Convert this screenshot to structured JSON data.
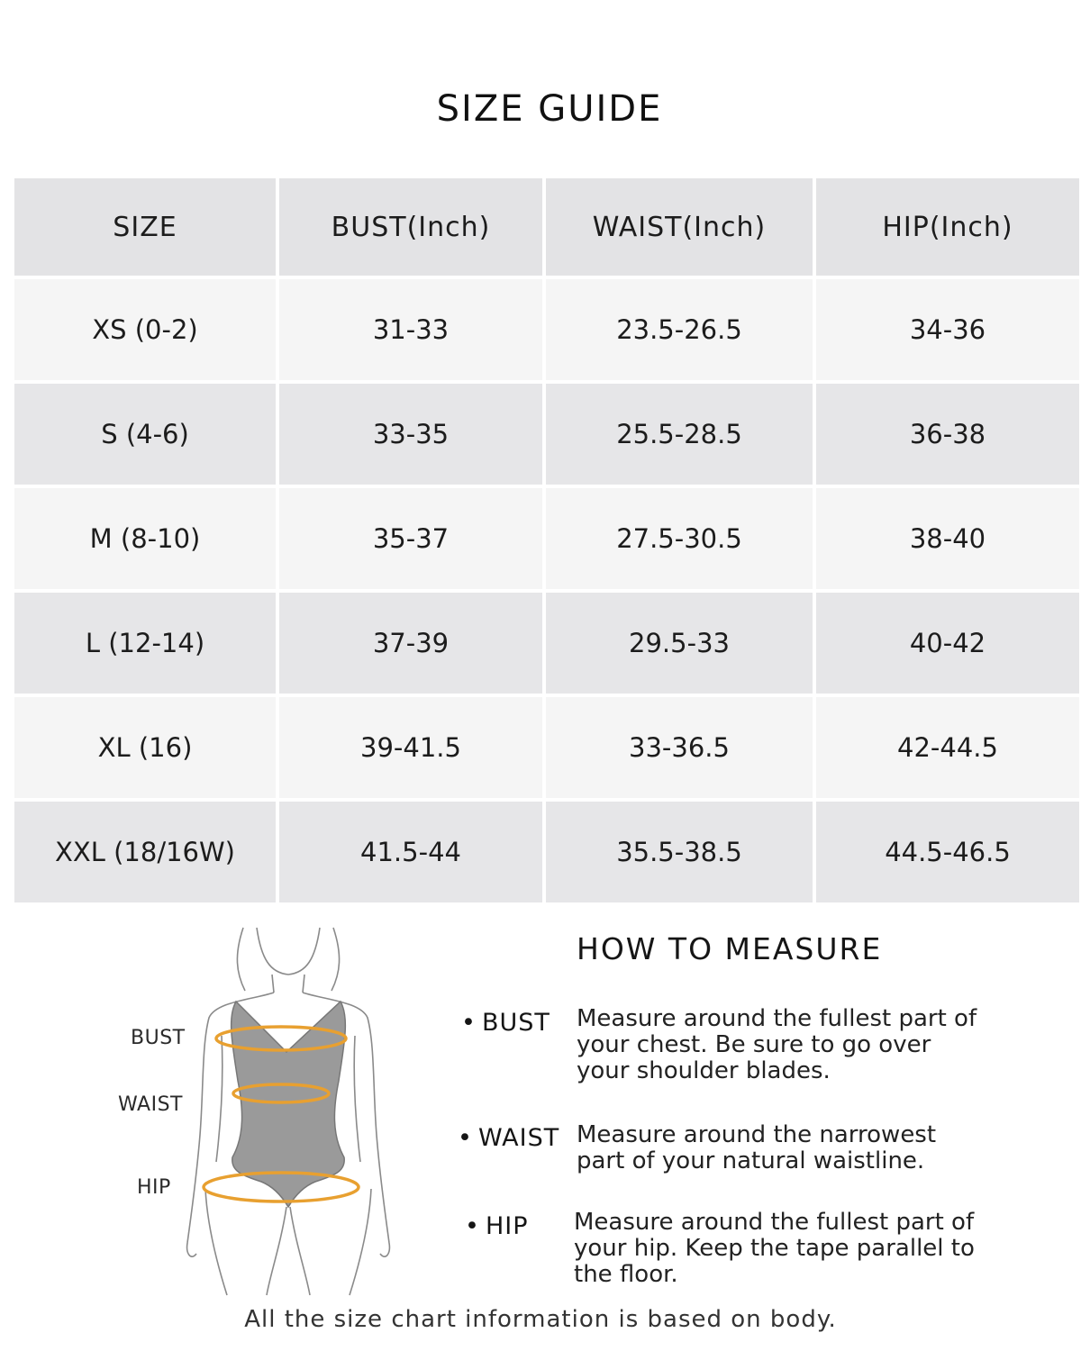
{
  "title": "SIZE GUIDE",
  "table": {
    "headers": [
      "SIZE",
      "BUST(Inch)",
      "WAIST(Inch)",
      "HIP(Inch)"
    ],
    "rows": [
      [
        "XS (0-2)",
        "31-33",
        "23.5-26.5",
        "34-36"
      ],
      [
        "S (4-6)",
        "33-35",
        "25.5-28.5",
        "36-38"
      ],
      [
        "M (8-10)",
        "35-37",
        "27.5-30.5",
        "38-40"
      ],
      [
        "L (12-14)",
        "37-39",
        "29.5-33",
        "40-42"
      ],
      [
        "XL (16)",
        "39-41.5",
        "33-36.5",
        "42-44.5"
      ],
      [
        "XXL (18/16W)",
        "41.5-44",
        "35.5-38.5",
        "44.5-46.5"
      ]
    ]
  },
  "figure": {
    "labels": {
      "bust": "BUST",
      "waist": "WAIST",
      "hip": "HIP"
    },
    "icon": "body-measurement-illustration",
    "tape_color": "#e8a030"
  },
  "how_to_measure": {
    "title": "HOW TO MEASURE",
    "items": [
      {
        "label": "BUST",
        "text": "Measure around the fullest part of your chest. Be sure to go over your shoulder blades."
      },
      {
        "label": "WAIST",
        "text": "Measure around the narrowest part of your natural waistline."
      },
      {
        "label": "HIP",
        "text": "Measure around the fullest part of your hip. Keep the tape parallel to the floor."
      }
    ]
  },
  "footnote": "All the size chart information is based on body."
}
